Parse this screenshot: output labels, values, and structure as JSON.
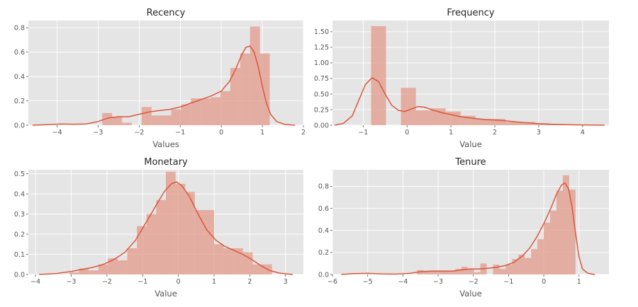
{
  "chart_data": [
    {
      "type": "histogram",
      "title": "Recency",
      "xlabel": "Values",
      "ylabel": "",
      "xlim": [
        -4.7,
        2.0
      ],
      "ylim": [
        0,
        0.86
      ],
      "xticks": [
        -4,
        -3,
        -2,
        -1,
        0,
        1,
        2
      ],
      "yticks": [
        0.0,
        0.2,
        0.4,
        0.6,
        0.8
      ],
      "ytick_labels": [
        "0.0",
        "0.2",
        "0.4",
        "0.6",
        "0.8"
      ],
      "grid": true,
      "bar_color": "#e2998a",
      "line_color": "#d9573a",
      "bins": [
        {
          "x0": -2.9,
          "x1": -2.66,
          "value": 0.1
        },
        {
          "x0": -2.66,
          "x1": -2.42,
          "value": 0.07
        },
        {
          "x0": -2.42,
          "x1": -2.18,
          "value": 0.02
        },
        {
          "x0": -2.18,
          "x1": -1.94,
          "value": 0.0
        },
        {
          "x0": -1.94,
          "x1": -1.7,
          "value": 0.15
        },
        {
          "x0": -1.7,
          "x1": -1.46,
          "value": 0.08
        },
        {
          "x0": -1.46,
          "x1": -1.22,
          "value": 0.08
        },
        {
          "x0": -1.22,
          "x1": -0.98,
          "value": 0.13
        },
        {
          "x0": -0.98,
          "x1": -0.74,
          "value": 0.17
        },
        {
          "x0": -0.74,
          "x1": -0.5,
          "value": 0.22
        },
        {
          "x0": -0.5,
          "x1": -0.26,
          "value": 0.22
        },
        {
          "x0": -0.26,
          "x1": -0.02,
          "value": 0.23
        },
        {
          "x0": -0.02,
          "x1": 0.22,
          "value": 0.28
        },
        {
          "x0": 0.22,
          "x1": 0.46,
          "value": 0.47
        },
        {
          "x0": 0.46,
          "x1": 0.7,
          "value": 0.59
        },
        {
          "x0": 0.7,
          "x1": 0.94,
          "value": 0.81
        },
        {
          "x0": 0.94,
          "x1": 1.18,
          "value": 0.59
        }
      ],
      "kde": [
        [
          -4.6,
          0.0
        ],
        [
          -4.2,
          0.005
        ],
        [
          -3.9,
          0.01
        ],
        [
          -3.6,
          0.008
        ],
        [
          -3.3,
          0.01
        ],
        [
          -3.0,
          0.03
        ],
        [
          -2.75,
          0.06
        ],
        [
          -2.5,
          0.07
        ],
        [
          -2.25,
          0.07
        ],
        [
          -2.0,
          0.09
        ],
        [
          -1.75,
          0.11
        ],
        [
          -1.5,
          0.12
        ],
        [
          -1.25,
          0.13
        ],
        [
          -1.0,
          0.15
        ],
        [
          -0.75,
          0.18
        ],
        [
          -0.5,
          0.21
        ],
        [
          -0.25,
          0.24
        ],
        [
          0.0,
          0.28
        ],
        [
          0.2,
          0.36
        ],
        [
          0.35,
          0.46
        ],
        [
          0.5,
          0.58
        ],
        [
          0.6,
          0.64
        ],
        [
          0.7,
          0.65
        ],
        [
          0.8,
          0.6
        ],
        [
          0.9,
          0.48
        ],
        [
          1.0,
          0.32
        ],
        [
          1.1,
          0.18
        ],
        [
          1.2,
          0.09
        ],
        [
          1.35,
          0.03
        ],
        [
          1.55,
          0.006
        ],
        [
          1.8,
          0.0
        ]
      ]
    },
    {
      "type": "histogram",
      "title": "Frequency",
      "xlabel": "Value",
      "ylabel": "",
      "xlim": [
        -1.7,
        4.6
      ],
      "ylim": [
        0,
        1.68
      ],
      "xticks": [
        -1,
        0,
        1,
        2,
        3,
        4
      ],
      "yticks": [
        0.0,
        0.25,
        0.5,
        0.75,
        1.0,
        1.25,
        1.5
      ],
      "ytick_labels": [
        "0.00",
        "0.25",
        "0.50",
        "0.75",
        "1.00",
        "1.25",
        "1.50"
      ],
      "grid": true,
      "bar_color": "#e2998a",
      "line_color": "#d9573a",
      "bins": [
        {
          "x0": -0.82,
          "x1": -0.48,
          "value": 1.59
        },
        {
          "x0": -0.48,
          "x1": -0.14,
          "value": 0.0
        },
        {
          "x0": -0.14,
          "x1": 0.2,
          "value": 0.6
        },
        {
          "x0": 0.2,
          "x1": 0.54,
          "value": 0.24
        },
        {
          "x0": 0.54,
          "x1": 0.88,
          "value": 0.27
        },
        {
          "x0": 0.88,
          "x1": 1.22,
          "value": 0.22
        },
        {
          "x0": 1.22,
          "x1": 1.56,
          "value": 0.15
        },
        {
          "x0": 1.56,
          "x1": 1.9,
          "value": 0.1
        },
        {
          "x0": 1.9,
          "x1": 2.24,
          "value": 0.1
        },
        {
          "x0": 2.24,
          "x1": 2.58,
          "value": 0.05
        },
        {
          "x0": 2.58,
          "x1": 2.92,
          "value": 0.05
        },
        {
          "x0": 2.92,
          "x1": 3.26,
          "value": 0.03
        },
        {
          "x0": 3.26,
          "x1": 3.6,
          "value": 0.02
        },
        {
          "x0": 3.6,
          "x1": 3.94,
          "value": 0.01
        }
      ],
      "kde": [
        [
          -1.65,
          0.0
        ],
        [
          -1.45,
          0.03
        ],
        [
          -1.25,
          0.15
        ],
        [
          -1.1,
          0.4
        ],
        [
          -0.95,
          0.65
        ],
        [
          -0.8,
          0.76
        ],
        [
          -0.65,
          0.7
        ],
        [
          -0.5,
          0.5
        ],
        [
          -0.35,
          0.32
        ],
        [
          -0.2,
          0.24
        ],
        [
          -0.05,
          0.22
        ],
        [
          0.1,
          0.26
        ],
        [
          0.25,
          0.3
        ],
        [
          0.4,
          0.29
        ],
        [
          0.6,
          0.24
        ],
        [
          0.8,
          0.2
        ],
        [
          1.0,
          0.17
        ],
        [
          1.2,
          0.14
        ],
        [
          1.5,
          0.11
        ],
        [
          1.8,
          0.09
        ],
        [
          2.1,
          0.08
        ],
        [
          2.4,
          0.06
        ],
        [
          2.7,
          0.04
        ],
        [
          3.0,
          0.025
        ],
        [
          3.3,
          0.015
        ],
        [
          3.6,
          0.008
        ],
        [
          4.0,
          0.004
        ],
        [
          4.5,
          0.0
        ]
      ]
    },
    {
      "type": "histogram",
      "title": "Monetary",
      "xlabel": "Value",
      "ylabel": "",
      "xlim": [
        -4.2,
        3.5
      ],
      "ylim": [
        0,
        0.52
      ],
      "xticks": [
        -4,
        -3,
        -2,
        -1,
        0,
        1,
        2,
        3
      ],
      "yticks": [
        0.0,
        0.1,
        0.2,
        0.3,
        0.4,
        0.5
      ],
      "ytick_labels": [
        "0.0",
        "0.1",
        "0.2",
        "0.3",
        "0.4",
        "0.5"
      ],
      "grid": true,
      "bar_color": "#e2998a",
      "line_color": "#d9573a",
      "bins": [
        {
          "x0": -3.05,
          "x1": -2.78,
          "value": 0.01
        },
        {
          "x0": -2.78,
          "x1": -2.51,
          "value": 0.03
        },
        {
          "x0": -2.51,
          "x1": -2.24,
          "value": 0.02
        },
        {
          "x0": -2.24,
          "x1": -1.97,
          "value": 0.05
        },
        {
          "x0": -1.97,
          "x1": -1.7,
          "value": 0.08
        },
        {
          "x0": -1.7,
          "x1": -1.43,
          "value": 0.07
        },
        {
          "x0": -1.43,
          "x1": -1.16,
          "value": 0.13
        },
        {
          "x0": -1.16,
          "x1": -0.89,
          "value": 0.24
        },
        {
          "x0": -0.89,
          "x1": -0.62,
          "value": 0.3
        },
        {
          "x0": -0.62,
          "x1": -0.35,
          "value": 0.37
        },
        {
          "x0": -0.35,
          "x1": -0.08,
          "value": 0.51
        },
        {
          "x0": -0.08,
          "x1": 0.19,
          "value": 0.45
        },
        {
          "x0": 0.19,
          "x1": 0.46,
          "value": 0.41
        },
        {
          "x0": 0.46,
          "x1": 0.73,
          "value": 0.32
        },
        {
          "x0": 0.73,
          "x1": 1.0,
          "value": 0.32
        },
        {
          "x0": 1.0,
          "x1": 1.27,
          "value": 0.15
        },
        {
          "x0": 1.27,
          "x1": 1.54,
          "value": 0.13
        },
        {
          "x0": 1.54,
          "x1": 1.81,
          "value": 0.13
        },
        {
          "x0": 1.81,
          "x1": 2.08,
          "value": 0.11
        },
        {
          "x0": 2.08,
          "x1": 2.35,
          "value": 0.05
        },
        {
          "x0": 2.35,
          "x1": 2.62,
          "value": 0.05
        }
      ],
      "kde": [
        [
          -3.9,
          0.0
        ],
        [
          -3.4,
          0.005
        ],
        [
          -3.0,
          0.015
        ],
        [
          -2.7,
          0.025
        ],
        [
          -2.4,
          0.035
        ],
        [
          -2.1,
          0.05
        ],
        [
          -1.8,
          0.075
        ],
        [
          -1.5,
          0.11
        ],
        [
          -1.2,
          0.17
        ],
        [
          -0.9,
          0.26
        ],
        [
          -0.6,
          0.35
        ],
        [
          -0.4,
          0.41
        ],
        [
          -0.2,
          0.45
        ],
        [
          -0.05,
          0.46
        ],
        [
          0.1,
          0.44
        ],
        [
          0.3,
          0.39
        ],
        [
          0.55,
          0.3
        ],
        [
          0.8,
          0.22
        ],
        [
          1.05,
          0.17
        ],
        [
          1.3,
          0.14
        ],
        [
          1.55,
          0.12
        ],
        [
          1.8,
          0.1
        ],
        [
          2.05,
          0.075
        ],
        [
          2.3,
          0.045
        ],
        [
          2.55,
          0.02
        ],
        [
          2.85,
          0.006
        ],
        [
          3.2,
          0.0
        ]
      ]
    },
    {
      "type": "histogram",
      "title": "Tenure",
      "xlabel": "Value",
      "ylabel": "",
      "xlim": [
        -6.0,
        1.85
      ],
      "ylim": [
        0,
        0.95
      ],
      "xticks": [
        -6,
        -5,
        -4,
        -3,
        -2,
        -1,
        0,
        1
      ],
      "yticks": [
        0.0,
        0.2,
        0.4,
        0.6,
        0.8
      ],
      "ytick_labels": [
        "0.0",
        "0.2",
        "0.4",
        "0.6",
        "0.8"
      ],
      "grid": true,
      "bar_color": "#e2998a",
      "line_color": "#d9573a",
      "bins": [
        {
          "x0": -3.6,
          "x1": -3.42,
          "value": 0.04
        },
        {
          "x0": -3.42,
          "x1": -3.24,
          "value": 0.03
        },
        {
          "x0": -3.24,
          "x1": -3.06,
          "value": 0.03
        },
        {
          "x0": -3.06,
          "x1": -2.88,
          "value": 0.03
        },
        {
          "x0": -2.88,
          "x1": -2.7,
          "value": 0.03
        },
        {
          "x0": -2.7,
          "x1": -2.52,
          "value": 0.03
        },
        {
          "x0": -2.52,
          "x1": -2.34,
          "value": 0.05
        },
        {
          "x0": -2.34,
          "x1": -2.16,
          "value": 0.07
        },
        {
          "x0": -2.16,
          "x1": -1.98,
          "value": 0.05
        },
        {
          "x0": -1.98,
          "x1": -1.8,
          "value": 0.02
        },
        {
          "x0": -1.8,
          "x1": -1.62,
          "value": 0.1
        },
        {
          "x0": -1.62,
          "x1": -1.44,
          "value": 0.0
        },
        {
          "x0": -1.44,
          "x1": -1.26,
          "value": 0.09
        },
        {
          "x0": -1.26,
          "x1": -1.08,
          "value": 0.05
        },
        {
          "x0": -1.08,
          "x1": -0.9,
          "value": 0.09
        },
        {
          "x0": -0.9,
          "x1": -0.72,
          "value": 0.14
        },
        {
          "x0": -0.72,
          "x1": -0.54,
          "value": 0.18
        },
        {
          "x0": -0.54,
          "x1": -0.36,
          "value": 0.15
        },
        {
          "x0": -0.36,
          "x1": -0.18,
          "value": 0.23
        },
        {
          "x0": -0.18,
          "x1": 0.0,
          "value": 0.32
        },
        {
          "x0": 0.0,
          "x1": 0.18,
          "value": 0.47
        },
        {
          "x0": 0.18,
          "x1": 0.36,
          "value": 0.58
        },
        {
          "x0": 0.36,
          "x1": 0.54,
          "value": 0.76
        },
        {
          "x0": 0.54,
          "x1": 0.72,
          "value": 0.9
        },
        {
          "x0": 0.72,
          "x1": 0.9,
          "value": 0.77
        }
      ],
      "kde": [
        [
          -5.75,
          0.0
        ],
        [
          -5.4,
          0.008
        ],
        [
          -5.0,
          0.01
        ],
        [
          -4.6,
          0.005
        ],
        [
          -4.2,
          0.003
        ],
        [
          -3.8,
          0.01
        ],
        [
          -3.5,
          0.025
        ],
        [
          -3.2,
          0.03
        ],
        [
          -2.9,
          0.03
        ],
        [
          -2.6,
          0.03
        ],
        [
          -2.35,
          0.04
        ],
        [
          -2.1,
          0.05
        ],
        [
          -1.85,
          0.05
        ],
        [
          -1.6,
          0.055
        ],
        [
          -1.35,
          0.065
        ],
        [
          -1.1,
          0.08
        ],
        [
          -0.85,
          0.11
        ],
        [
          -0.6,
          0.17
        ],
        [
          -0.4,
          0.24
        ],
        [
          -0.2,
          0.34
        ],
        [
          0.0,
          0.46
        ],
        [
          0.2,
          0.6
        ],
        [
          0.35,
          0.72
        ],
        [
          0.5,
          0.81
        ],
        [
          0.6,
          0.83
        ],
        [
          0.7,
          0.78
        ],
        [
          0.8,
          0.62
        ],
        [
          0.9,
          0.38
        ],
        [
          1.0,
          0.16
        ],
        [
          1.1,
          0.05
        ],
        [
          1.25,
          0.01
        ],
        [
          1.45,
          0.0
        ]
      ]
    }
  ]
}
